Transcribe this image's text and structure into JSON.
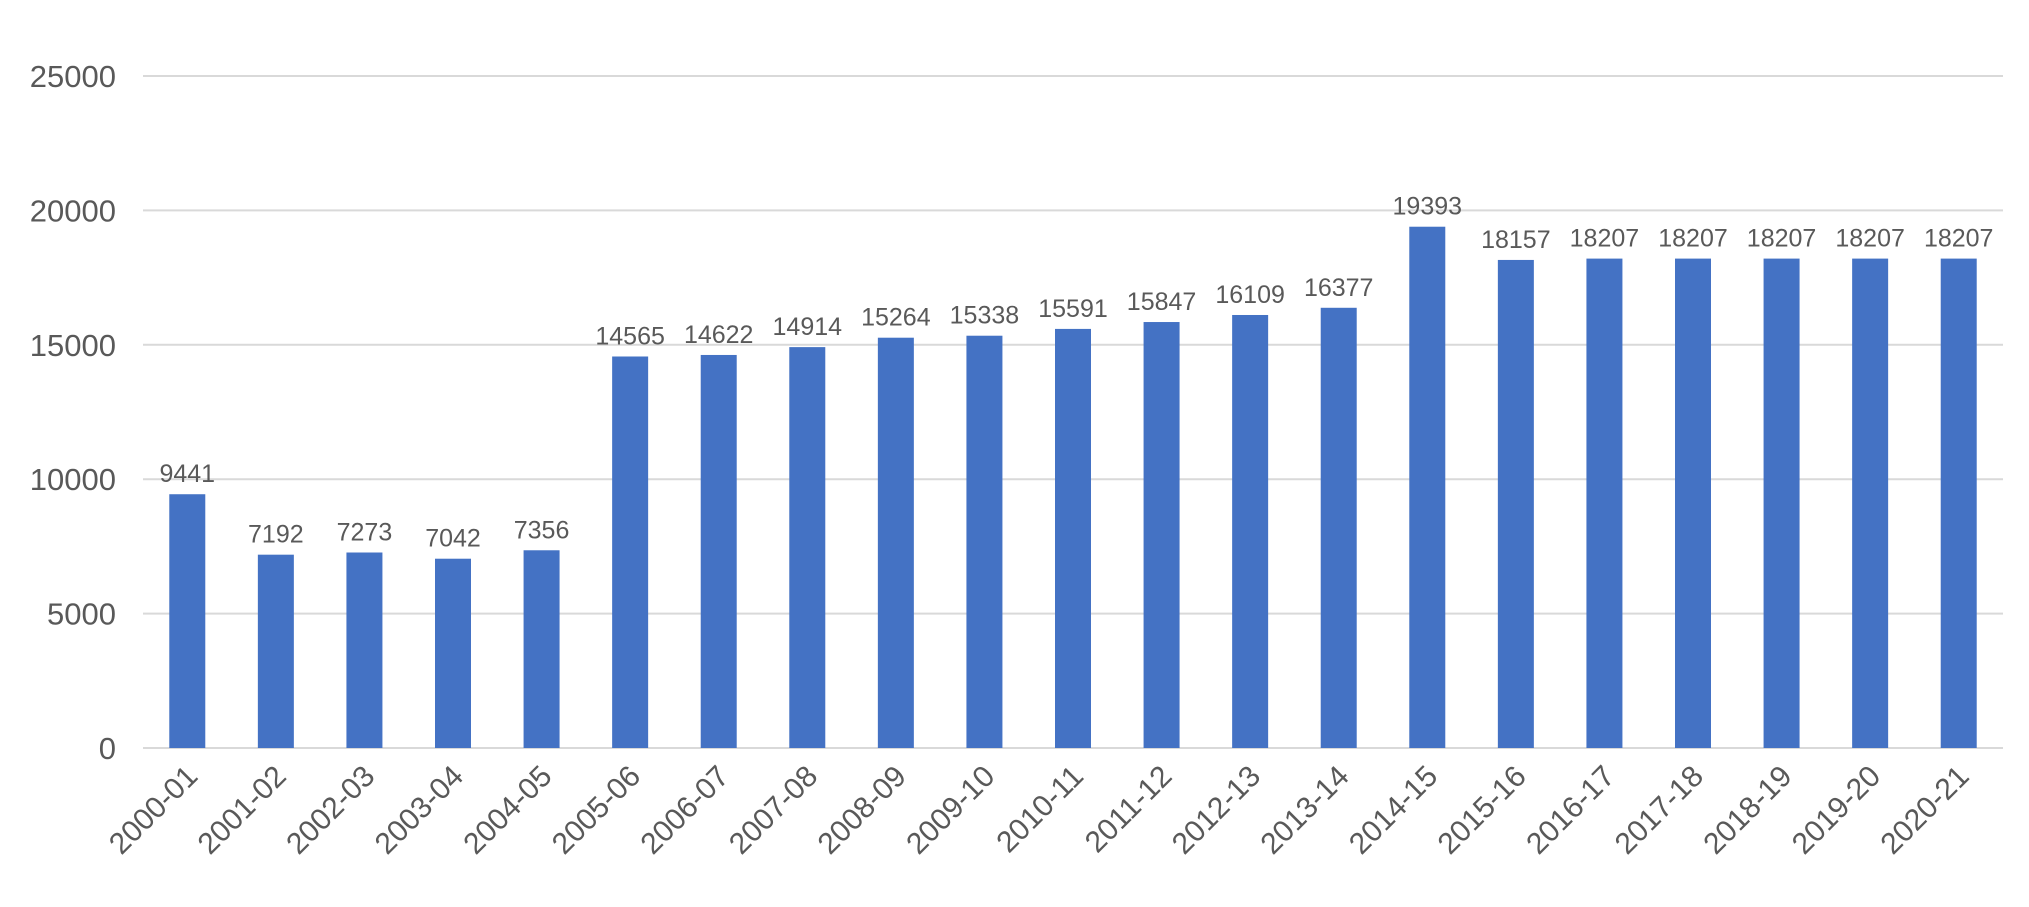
{
  "chart_data": {
    "type": "bar",
    "title": "",
    "xlabel": "",
    "ylabel": "",
    "categories": [
      "2000-01",
      "2001-02",
      "2002-03",
      "2003-04",
      "2004-05",
      "2005-06",
      "2006-07",
      "2007-08",
      "2008-09",
      "2009-10",
      "2010-11",
      "2011-12",
      "2012-13",
      "2013-14",
      "2014-15",
      "2015-16",
      "2016-17",
      "2017-18",
      "2018-19",
      "2019-20",
      "2020-21"
    ],
    "values": [
      9441,
      7192,
      7273,
      7042,
      7356,
      14565,
      14622,
      14914,
      15264,
      15338,
      15591,
      15847,
      16109,
      16377,
      19393,
      18157,
      18207,
      18207,
      18207,
      18207,
      18207
    ],
    "data_labels": [
      "9441",
      "7192",
      "7273",
      "7042",
      "7356",
      "14565",
      "14622",
      "14914",
      "15264",
      "15338",
      "15591",
      "15847",
      "16109",
      "16377",
      "19393",
      "18157",
      "18207",
      "18207",
      "18207",
      "18207",
      "18207"
    ],
    "yticks": [
      0,
      5000,
      10000,
      15000,
      20000,
      25000
    ],
    "ylim": [
      0,
      25000
    ],
    "grid": true,
    "legend": "none",
    "bar_color": "#4472c4",
    "grid_color": "#d9d9d9",
    "text_color": "#595959"
  }
}
